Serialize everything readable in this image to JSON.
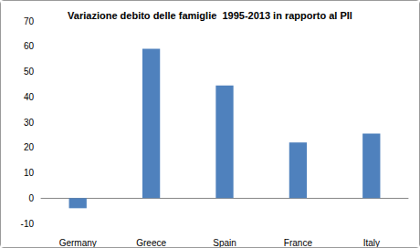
{
  "chart_data": {
    "type": "bar",
    "title": "Variazione debito delle famiglie  1995-2013 in rapporto al PIl",
    "categories": [
      "Germany",
      "Greece",
      "Spain",
      "France",
      "Italy"
    ],
    "values": [
      -4,
      59,
      44.5,
      22,
      25.5
    ],
    "color": "#4f81bd",
    "ylim": [
      -10,
      70
    ],
    "yticks": [
      -10,
      0,
      10,
      20,
      30,
      40,
      50,
      60,
      70
    ],
    "grid": false
  }
}
